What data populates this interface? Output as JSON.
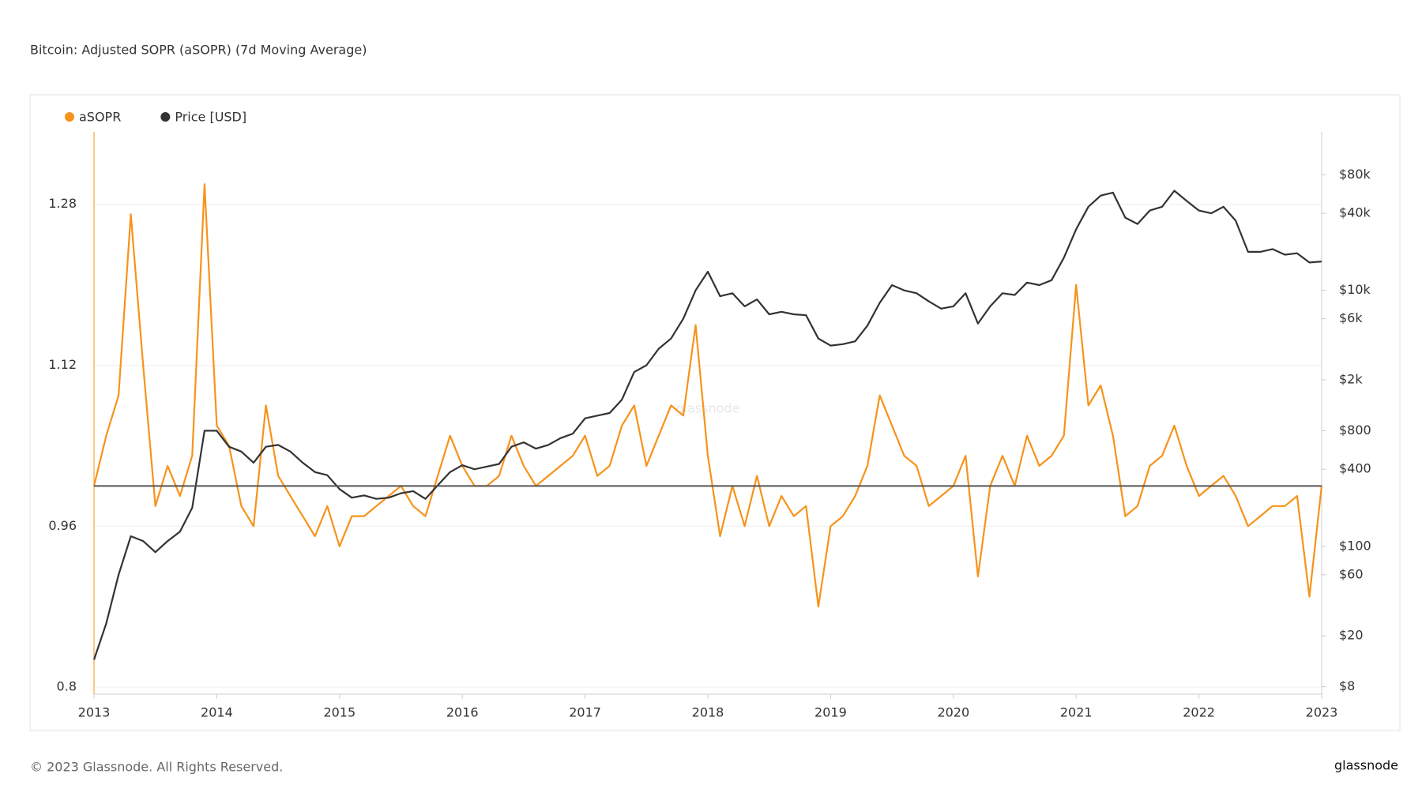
{
  "chart_data": {
    "type": "line",
    "title": "Bitcoin: Adjusted SOPR (aSOPR) (7d Moving Average)",
    "watermark": "glassnode",
    "footer": "© 2023 Glassnode. All Rights Reserved.",
    "logo": "glassnode",
    "xlim": [
      2013,
      2023
    ],
    "xticks": [
      2013,
      2014,
      2015,
      2016,
      2017,
      2018,
      2019,
      2020,
      2021,
      2022,
      2023
    ],
    "ylim": [
      0.793,
      1.352
    ],
    "yticks": [
      0.8,
      0.96,
      1.12,
      1.28
    ],
    "y2lim": [
      7,
      173000
    ],
    "y2log": true,
    "y2ticks": [
      {
        "value": 8,
        "label": "$8"
      },
      {
        "value": 20,
        "label": "$20"
      },
      {
        "value": 60,
        "label": "$60"
      },
      {
        "value": 100,
        "label": "$100"
      },
      {
        "value": 400,
        "label": "$400"
      },
      {
        "value": 800,
        "label": "$800"
      },
      {
        "value": 2000,
        "label": "$2k"
      },
      {
        "value": 6000,
        "label": "$6k"
      },
      {
        "value": 10000,
        "label": "$10k"
      },
      {
        "value": 40000,
        "label": "$40k"
      },
      {
        "value": 80000,
        "label": "$80k"
      }
    ],
    "hline": 1,
    "grid": true,
    "x": [
      2013.0,
      2013.1,
      2013.2,
      2013.3,
      2013.4,
      2013.5,
      2013.6,
      2013.7,
      2013.8,
      2013.9,
      2014.0,
      2014.1,
      2014.2,
      2014.3,
      2014.4,
      2014.5,
      2014.6,
      2014.7,
      2014.8,
      2014.9,
      2015.0,
      2015.1,
      2015.2,
      2015.3,
      2015.4,
      2015.5,
      2015.6,
      2015.7,
      2015.8,
      2015.9,
      2016.0,
      2016.1,
      2016.2,
      2016.3,
      2016.4,
      2016.5,
      2016.6,
      2016.7,
      2016.8,
      2016.9,
      2017.0,
      2017.1,
      2017.2,
      2017.3,
      2017.4,
      2017.5,
      2017.6,
      2017.7,
      2017.8,
      2017.9,
      2018.0,
      2018.1,
      2018.2,
      2018.3,
      2018.4,
      2018.5,
      2018.6,
      2018.7,
      2018.8,
      2018.9,
      2019.0,
      2019.1,
      2019.2,
      2019.3,
      2019.4,
      2019.5,
      2019.6,
      2019.7,
      2019.8,
      2019.9,
      2020.0,
      2020.1,
      2020.2,
      2020.3,
      2020.4,
      2020.5,
      2020.6,
      2020.7,
      2020.8,
      2020.9,
      2021.0,
      2021.1,
      2021.2,
      2021.3,
      2021.4,
      2021.5,
      2021.6,
      2021.7,
      2021.8,
      2021.9,
      2022.0,
      2022.1,
      2022.2,
      2022.3,
      2022.4,
      2022.5,
      2022.6,
      2022.7,
      2022.8,
      2022.9,
      2023.0
    ],
    "series": [
      {
        "name": "aSOPR",
        "color": "#f7931a",
        "values": [
          1.0,
          1.05,
          1.09,
          1.27,
          1.12,
          0.98,
          1.02,
          0.99,
          1.03,
          1.3,
          1.06,
          1.04,
          0.98,
          0.96,
          1.08,
          1.01,
          0.99,
          0.97,
          0.95,
          0.98,
          0.94,
          0.97,
          0.97,
          0.98,
          0.99,
          1.0,
          0.98,
          0.97,
          1.01,
          1.05,
          1.02,
          1.0,
          1.0,
          1.01,
          1.05,
          1.02,
          1.0,
          1.01,
          1.02,
          1.03,
          1.05,
          1.01,
          1.02,
          1.06,
          1.08,
          1.02,
          1.05,
          1.08,
          1.07,
          1.16,
          1.03,
          0.95,
          1.0,
          0.96,
          1.01,
          0.96,
          0.99,
          0.97,
          0.98,
          0.88,
          0.96,
          0.97,
          0.99,
          1.02,
          1.09,
          1.06,
          1.03,
          1.02,
          0.98,
          0.99,
          1.0,
          1.03,
          0.91,
          1.0,
          1.03,
          1.0,
          1.05,
          1.02,
          1.03,
          1.05,
          1.2,
          1.08,
          1.1,
          1.05,
          0.97,
          0.98,
          1.02,
          1.03,
          1.06,
          1.02,
          0.99,
          1.0,
          1.01,
          0.99,
          0.96,
          0.97,
          0.98,
          0.98,
          0.99,
          0.89,
          1.0
        ]
      },
      {
        "name": "Price [USD]",
        "color": "#333333",
        "axis": "y2",
        "values": [
          13,
          25,
          60,
          120,
          110,
          90,
          110,
          130,
          200,
          800,
          800,
          600,
          550,
          450,
          600,
          620,
          550,
          450,
          380,
          360,
          280,
          240,
          250,
          235,
          240,
          260,
          270,
          235,
          300,
          380,
          430,
          400,
          420,
          440,
          600,
          650,
          580,
          620,
          700,
          760,
          1000,
          1050,
          1100,
          1400,
          2300,
          2600,
          3500,
          4200,
          6000,
          10000,
          14000,
          9000,
          9500,
          7500,
          8500,
          6500,
          6800,
          6500,
          6400,
          4200,
          3700,
          3800,
          4000,
          5300,
          8000,
          11000,
          10000,
          9500,
          8200,
          7200,
          7500,
          9500,
          5500,
          7500,
          9500,
          9200,
          11500,
          11000,
          12000,
          18000,
          30000,
          45000,
          55000,
          58000,
          37000,
          33000,
          42000,
          45000,
          60000,
          50000,
          42000,
          40000,
          45000,
          35000,
          20000,
          20000,
          21000,
          19000,
          19500,
          16500,
          16800
        ]
      }
    ]
  }
}
